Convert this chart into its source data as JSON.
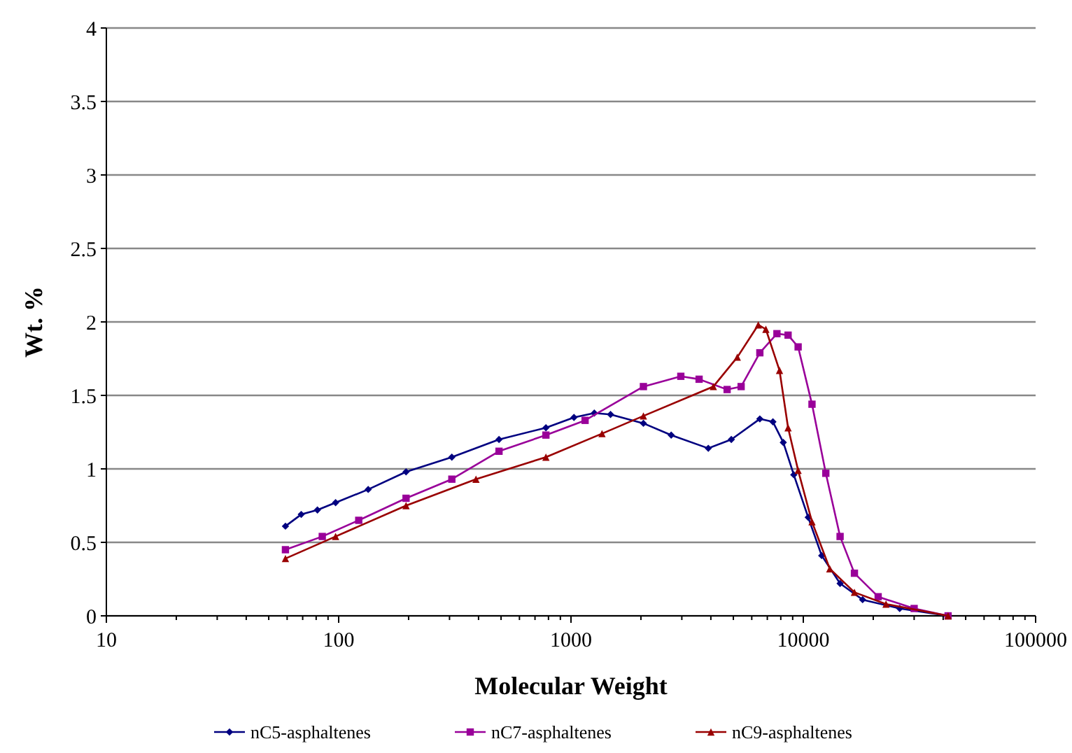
{
  "chart_data": {
    "type": "line",
    "xlabel": "Molecular Weight",
    "ylabel": "Wt. %",
    "log": "x",
    "grid": "y",
    "legend": "bottom",
    "line_style": "solid",
    "xlim": [
      10,
      100000
    ],
    "ylim": [
      0,
      4
    ],
    "xticks": [
      10,
      {
        "value": 20,
        "label": null
      },
      {
        "value": 30,
        "label": null
      },
      {
        "value": 40,
        "label": null
      },
      {
        "value": 50,
        "label": null
      },
      {
        "value": 60,
        "label": null
      },
      {
        "value": 70,
        "label": null
      },
      {
        "value": 80,
        "label": null
      },
      {
        "value": 90,
        "label": null
      },
      100,
      {
        "value": 200,
        "label": null
      },
      {
        "value": 300,
        "label": null
      },
      {
        "value": 400,
        "label": null
      },
      {
        "value": 500,
        "label": null
      },
      {
        "value": 600,
        "label": null
      },
      {
        "value": 700,
        "label": null
      },
      {
        "value": 800,
        "label": null
      },
      {
        "value": 900,
        "label": null
      },
      1000,
      {
        "value": 2000,
        "label": null
      },
      {
        "value": 3000,
        "label": null
      },
      {
        "value": 4000,
        "label": null
      },
      {
        "value": 5000,
        "label": null
      },
      {
        "value": 6000,
        "label": null
      },
      {
        "value": 7000,
        "label": null
      },
      {
        "value": 8000,
        "label": null
      },
      {
        "value": 9000,
        "label": null
      },
      10000,
      {
        "value": 20000,
        "label": null
      },
      {
        "value": 30000,
        "label": null
      },
      {
        "value": 40000,
        "label": null
      },
      {
        "value": 50000,
        "label": null
      },
      {
        "value": 60000,
        "label": null
      },
      {
        "value": 70000,
        "label": null
      },
      {
        "value": 80000,
        "label": null
      },
      {
        "value": 90000,
        "label": null
      },
      100000
    ],
    "yticks": [
      0,
      0.5,
      1,
      1.5,
      2,
      2.5,
      3,
      3.5,
      4
    ],
    "series": [
      {
        "name": "nC5-asphaltenes",
        "color": "#000080",
        "marker": "diamond",
        "x": [
          59,
          69,
          81,
          97,
          134,
          195,
          307,
          490,
          780,
          1030,
          1260,
          1480,
          2050,
          2700,
          3900,
          4900,
          6500,
          7400,
          8200,
          9100,
          10500,
          12000,
          14400,
          18000,
          26000,
          42000
        ],
        "values": [
          0.61,
          0.69,
          0.72,
          0.77,
          0.86,
          0.98,
          1.08,
          1.2,
          1.28,
          1.35,
          1.38,
          1.37,
          1.31,
          1.23,
          1.14,
          1.2,
          1.34,
          1.32,
          1.18,
          0.96,
          0.67,
          0.41,
          0.22,
          0.11,
          0.05,
          0
        ]
      },
      {
        "name": "nC7-asphaltenes",
        "color": "#990099",
        "marker": "square",
        "x": [
          59,
          85,
          122,
          195,
          307,
          490,
          780,
          1150,
          2050,
          2970,
          3560,
          4700,
          5400,
          6500,
          7700,
          8600,
          9500,
          10900,
          12500,
          14400,
          16600,
          21000,
          30000,
          42000
        ],
        "values": [
          0.45,
          0.54,
          0.65,
          0.8,
          0.93,
          1.12,
          1.23,
          1.33,
          1.56,
          1.63,
          1.61,
          1.54,
          1.56,
          1.79,
          1.92,
          1.91,
          1.83,
          1.44,
          0.97,
          0.54,
          0.29,
          0.13,
          0.05,
          0
        ]
      },
      {
        "name": "nC9-asphaltenes",
        "color": "#990000",
        "marker": "triangle",
        "x": [
          59,
          97,
          195,
          390,
          780,
          1360,
          2050,
          4100,
          5200,
          6400,
          6900,
          7900,
          8600,
          9500,
          10900,
          13000,
          16600,
          22700,
          42000
        ],
        "values": [
          0.39,
          0.54,
          0.75,
          0.93,
          1.08,
          1.24,
          1.36,
          1.56,
          1.76,
          1.98,
          1.95,
          1.67,
          1.28,
          0.99,
          0.64,
          0.32,
          0.16,
          0.08,
          0
        ]
      }
    ]
  }
}
